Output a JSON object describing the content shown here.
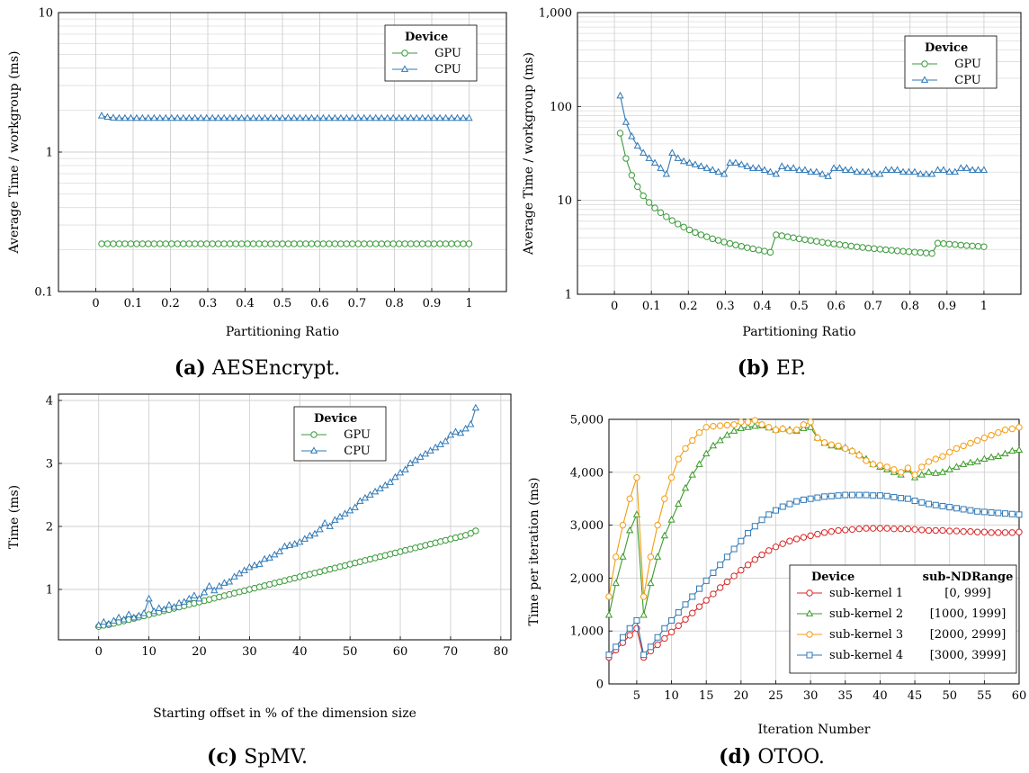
{
  "captions": [
    {
      "letter": "(a)",
      "text": "AESEncrypt."
    },
    {
      "letter": "(b)",
      "text": "EP."
    },
    {
      "letter": "(c)",
      "text": "SpMV."
    },
    {
      "letter": "(d)",
      "text": "OTOO."
    }
  ],
  "colors": {
    "green": "#3a9a3a",
    "blue": "#2f78b5",
    "red": "#d62728",
    "green2": "#3c9a2a",
    "orange": "#f39c12",
    "blue2": "#2f78b5"
  },
  "chart_data": [
    {
      "type": "line",
      "title": "",
      "xlabel": "Partitioning Ratio",
      "ylabel": "Average Time / workgroup (ms)",
      "xlim": [
        -0.1,
        1.1
      ],
      "ylim": [
        0.1,
        10
      ],
      "yscale": "log",
      "xticks": [
        0,
        0.1,
        0.2,
        0.3,
        0.4,
        0.5,
        0.6,
        0.7,
        0.8,
        0.9,
        1
      ],
      "xtick_labels": [
        "0",
        "0.1",
        "0.2",
        "0.3",
        "0.4",
        "0.5",
        "0.6",
        "0.7",
        "0.8",
        "0.9",
        "1"
      ],
      "yticks": [
        0.1,
        1,
        10
      ],
      "ytick_labels": [
        "0.1",
        "1",
        "10"
      ],
      "grid": true,
      "legend": {
        "title": "Device",
        "placement": "top-right"
      },
      "series": [
        {
          "name": "GPU",
          "marker": "circle",
          "color": "#3a9a3a",
          "x_start": 0.015625,
          "x_step": 0.015625,
          "count": 64,
          "y": [
            0.22,
            0.22,
            0.22,
            0.22,
            0.22,
            0.22,
            0.22,
            0.22,
            0.22,
            0.22,
            0.22,
            0.22,
            0.22,
            0.22,
            0.22,
            0.22,
            0.22,
            0.22,
            0.22,
            0.22,
            0.22,
            0.22,
            0.22,
            0.22,
            0.22,
            0.22,
            0.22,
            0.22,
            0.22,
            0.22,
            0.22,
            0.22,
            0.22,
            0.22,
            0.22,
            0.22,
            0.22,
            0.22,
            0.22,
            0.22,
            0.22,
            0.22,
            0.22,
            0.22,
            0.22,
            0.22,
            0.22,
            0.22,
            0.22,
            0.22,
            0.22,
            0.22,
            0.22,
            0.22,
            0.22,
            0.22,
            0.22,
            0.22,
            0.22,
            0.22,
            0.22,
            0.22,
            0.22,
            0.22
          ]
        },
        {
          "name": "CPU",
          "marker": "triangle",
          "color": "#2f78b5",
          "x_start": 0.015625,
          "x_step": 0.015625,
          "count": 64,
          "y": [
            1.82,
            1.78,
            1.76,
            1.75,
            1.75,
            1.75,
            1.75,
            1.75,
            1.75,
            1.75,
            1.75,
            1.75,
            1.75,
            1.75,
            1.75,
            1.75,
            1.75,
            1.75,
            1.75,
            1.75,
            1.75,
            1.75,
            1.75,
            1.75,
            1.75,
            1.75,
            1.75,
            1.75,
            1.75,
            1.75,
            1.75,
            1.75,
            1.75,
            1.75,
            1.75,
            1.75,
            1.75,
            1.75,
            1.75,
            1.75,
            1.75,
            1.75,
            1.75,
            1.75,
            1.75,
            1.75,
            1.75,
            1.75,
            1.75,
            1.75,
            1.75,
            1.75,
            1.75,
            1.75,
            1.75,
            1.75,
            1.75,
            1.75,
            1.75,
            1.75,
            1.75,
            1.75,
            1.75,
            1.75
          ]
        }
      ]
    },
    {
      "type": "line",
      "title": "",
      "xlabel": "Partitioning Ratio",
      "ylabel": "Average Time / workgroup (ms)",
      "xlim": [
        -0.1,
        1.1
      ],
      "ylim": [
        1,
        1000
      ],
      "yscale": "log",
      "xticks": [
        0,
        0.1,
        0.2,
        0.3,
        0.4,
        0.5,
        0.6,
        0.7,
        0.8,
        0.9,
        1
      ],
      "xtick_labels": [
        "0",
        "0.1",
        "0.2",
        "0.3",
        "0.4",
        "0.5",
        "0.6",
        "0.7",
        "0.8",
        "0.9",
        "1"
      ],
      "yticks": [
        1,
        10,
        100,
        1000
      ],
      "ytick_labels": [
        "1",
        "10",
        "100",
        "1,000"
      ],
      "grid": true,
      "legend": {
        "title": "Device",
        "placement": "top-right"
      },
      "series": [
        {
          "name": "GPU",
          "marker": "circle",
          "color": "#3a9a3a",
          "x_start": 0.015625,
          "x_step": 0.015625,
          "count": 64,
          "y": [
            52,
            28,
            18.5,
            14,
            11.2,
            9.5,
            8.3,
            7.4,
            6.7,
            6.1,
            5.6,
            5.2,
            4.85,
            4.55,
            4.3,
            4.1,
            3.9,
            3.75,
            3.6,
            3.47,
            3.35,
            3.24,
            3.14,
            3.05,
            2.96,
            2.88,
            2.8,
            4.3,
            4.2,
            4.1,
            4.0,
            3.9,
            3.82,
            3.74,
            3.66,
            3.58,
            3.51,
            3.44,
            3.38,
            3.32,
            3.26,
            3.2,
            3.15,
            3.1,
            3.06,
            3.02,
            2.98,
            2.94,
            2.9,
            2.87,
            2.84,
            2.81,
            2.78,
            2.75,
            2.72,
            3.5,
            3.46,
            3.42,
            3.38,
            3.34,
            3.3,
            3.27,
            3.24,
            3.21
          ]
        },
        {
          "name": "CPU",
          "marker": "triangle",
          "color": "#2f78b5",
          "x_start": 0.015625,
          "x_step": 0.015625,
          "count": 64,
          "y": [
            130,
            68,
            48,
            38,
            32,
            28,
            25,
            22,
            19,
            32,
            28,
            26,
            25,
            24,
            23,
            22,
            21,
            20,
            19,
            25,
            25,
            24,
            23,
            22,
            22,
            21,
            20,
            19,
            23,
            22,
            22,
            21,
            21,
            20,
            20,
            19,
            18,
            22,
            22,
            21,
            21,
            20,
            20,
            20,
            19,
            19,
            21,
            21,
            21,
            20,
            20,
            20,
            19,
            19,
            19,
            21,
            21,
            20,
            20,
            22,
            22,
            21,
            21,
            21
          ]
        }
      ]
    },
    {
      "type": "line",
      "title": "",
      "xlabel": "Starting offset in % of the dimension size",
      "ylabel": "Time (ms)",
      "xlim": [
        -8,
        82
      ],
      "ylim": [
        0.2,
        4.1
      ],
      "xticks": [
        0,
        10,
        20,
        30,
        40,
        50,
        60,
        70,
        80
      ],
      "xtick_labels": [
        "0",
        "10",
        "20",
        "30",
        "40",
        "50",
        "60",
        "70",
        "80"
      ],
      "yticks": [
        1,
        2,
        3,
        4
      ],
      "ytick_labels": [
        "1",
        "2",
        "3",
        "4"
      ],
      "grid": true,
      "legend": {
        "title": "Device",
        "placement": "top-right"
      },
      "series": [
        {
          "name": "GPU",
          "marker": "circle",
          "color": "#3a9a3a",
          "x_start": 0,
          "x_step": 1,
          "count": 76,
          "y": [
            0.41,
            0.43,
            0.44,
            0.46,
            0.48,
            0.5,
            0.52,
            0.54,
            0.56,
            0.58,
            0.6,
            0.62,
            0.64,
            0.66,
            0.68,
            0.7,
            0.72,
            0.74,
            0.76,
            0.78,
            0.8,
            0.82,
            0.84,
            0.86,
            0.88,
            0.9,
            0.92,
            0.94,
            0.96,
            0.98,
            1.0,
            1.02,
            1.04,
            1.06,
            1.08,
            1.1,
            1.12,
            1.14,
            1.16,
            1.18,
            1.2,
            1.22,
            1.24,
            1.26,
            1.28,
            1.3,
            1.32,
            1.34,
            1.36,
            1.38,
            1.4,
            1.42,
            1.44,
            1.46,
            1.48,
            1.5,
            1.52,
            1.54,
            1.56,
            1.58,
            1.6,
            1.62,
            1.64,
            1.66,
            1.68,
            1.7,
            1.72,
            1.74,
            1.76,
            1.78,
            1.8,
            1.82,
            1.84,
            1.86,
            1.89,
            1.93
          ]
        },
        {
          "name": "CPU",
          "marker": "triangle",
          "color": "#2f78b5",
          "x_start": 0,
          "x_step": 1,
          "count": 76,
          "y": [
            0.43,
            0.48,
            0.45,
            0.5,
            0.55,
            0.52,
            0.6,
            0.55,
            0.58,
            0.62,
            0.85,
            0.65,
            0.7,
            0.68,
            0.75,
            0.72,
            0.78,
            0.8,
            0.85,
            0.9,
            0.85,
            0.95,
            1.05,
            0.98,
            1.05,
            1.1,
            1.12,
            1.2,
            1.25,
            1.3,
            1.35,
            1.38,
            1.4,
            1.48,
            1.5,
            1.55,
            1.6,
            1.68,
            1.7,
            1.72,
            1.75,
            1.8,
            1.85,
            1.88,
            1.95,
            2.05,
            2.0,
            2.1,
            2.15,
            2.2,
            2.25,
            2.3,
            2.4,
            2.45,
            2.5,
            2.55,
            2.6,
            2.65,
            2.7,
            2.78,
            2.85,
            2.9,
            3.0,
            3.05,
            3.1,
            3.15,
            3.2,
            3.25,
            3.3,
            3.35,
            3.45,
            3.5,
            3.48,
            3.55,
            3.62,
            3.88
          ]
        }
      ]
    },
    {
      "type": "line",
      "title": "",
      "xlabel": "Iteration Number",
      "ylabel": "Time per iteration (ms)",
      "xlim": [
        1,
        60
      ],
      "ylim": [
        0,
        5000
      ],
      "xticks": [
        5,
        10,
        15,
        20,
        25,
        30,
        35,
        40,
        45,
        50,
        55,
        60
      ],
      "xtick_labels": [
        "5",
        "10",
        "15",
        "20",
        "25",
        "30",
        "35",
        "40",
        "45",
        "50",
        "55",
        "60"
      ],
      "yticks": [
        0,
        1000,
        2000,
        3000,
        4000,
        5000
      ],
      "ytick_labels": [
        "0",
        "1,000",
        "2,000",
        "3,000",
        "4,000",
        "5,000"
      ],
      "grid": true,
      "legend": {
        "title": "Device",
        "title2": "sub-NDRange",
        "placement": "bottom-right"
      },
      "series": [
        {
          "name": "sub-kernel 1",
          "range": "[0, 999]",
          "marker": "circle",
          "color": "#d62728",
          "x_start": 1,
          "x_step": 1,
          "count": 60,
          "y": [
            500,
            640,
            780,
            920,
            1050,
            500,
            620,
            740,
            860,
            980,
            1100,
            1220,
            1340,
            1460,
            1580,
            1700,
            1820,
            1930,
            2040,
            2150,
            2250,
            2350,
            2440,
            2520,
            2590,
            2650,
            2700,
            2740,
            2770,
            2800,
            2830,
            2860,
            2880,
            2900,
            2910,
            2920,
            2930,
            2940,
            2940,
            2940,
            2940,
            2930,
            2930,
            2930,
            2920,
            2910,
            2900,
            2900,
            2900,
            2890,
            2890,
            2880,
            2880,
            2870,
            2870,
            2860,
            2860,
            2860,
            2860,
            2870
          ]
        },
        {
          "name": "sub-kernel 2",
          "range": "[1000, 1999]",
          "marker": "triangle",
          "color": "#3c9a2a",
          "x_start": 1,
          "x_step": 1,
          "count": 60,
          "y": [
            1300,
            1900,
            2400,
            2900,
            3200,
            1300,
            1900,
            2400,
            2800,
            3100,
            3400,
            3700,
            3950,
            4150,
            4350,
            4500,
            4600,
            4700,
            4780,
            4830,
            4850,
            4870,
            4880,
            4840,
            4800,
            4820,
            4800,
            4780,
            4830,
            4850,
            4650,
            4550,
            4500,
            4480,
            4460,
            4400,
            4330,
            4250,
            4150,
            4100,
            4050,
            4000,
            3950,
            4050,
            3900,
            3950,
            4000,
            3980,
            4000,
            4050,
            4100,
            4150,
            4180,
            4200,
            4250,
            4280,
            4300,
            4350,
            4400,
            4420
          ]
        },
        {
          "name": "sub-kernel 3",
          "range": "[2000, 2999]",
          "marker": "circle",
          "color": "#f39c12",
          "x_start": 1,
          "x_step": 1,
          "count": 60,
          "y": [
            1650,
            2400,
            3000,
            3500,
            3900,
            1650,
            2400,
            3000,
            3500,
            3900,
            4250,
            4450,
            4600,
            4750,
            4850,
            4870,
            4880,
            4890,
            4900,
            4950,
            4950,
            4980,
            4900,
            4850,
            4800,
            4820,
            4780,
            4800,
            4900,
            4950,
            4650,
            4560,
            4520,
            4500,
            4450,
            4400,
            4320,
            4220,
            4150,
            4130,
            4100,
            4050,
            4000,
            4080,
            3950,
            4100,
            4200,
            4250,
            4300,
            4380,
            4450,
            4500,
            4550,
            4600,
            4650,
            4700,
            4750,
            4800,
            4820,
            4850
          ]
        },
        {
          "name": "sub-kernel 4",
          "range": "[3000, 3999]",
          "marker": "square",
          "color": "#2f78b5",
          "x_start": 1,
          "x_step": 1,
          "count": 60,
          "y": [
            550,
            700,
            880,
            1050,
            1200,
            550,
            700,
            880,
            1050,
            1200,
            1350,
            1500,
            1650,
            1800,
            1950,
            2100,
            2250,
            2400,
            2550,
            2700,
            2850,
            2980,
            3100,
            3200,
            3280,
            3350,
            3400,
            3450,
            3480,
            3500,
            3520,
            3540,
            3550,
            3560,
            3570,
            3570,
            3570,
            3570,
            3560,
            3560,
            3550,
            3530,
            3510,
            3500,
            3460,
            3430,
            3400,
            3380,
            3360,
            3340,
            3320,
            3300,
            3280,
            3260,
            3250,
            3240,
            3230,
            3220,
            3210,
            3200
          ]
        }
      ]
    }
  ]
}
